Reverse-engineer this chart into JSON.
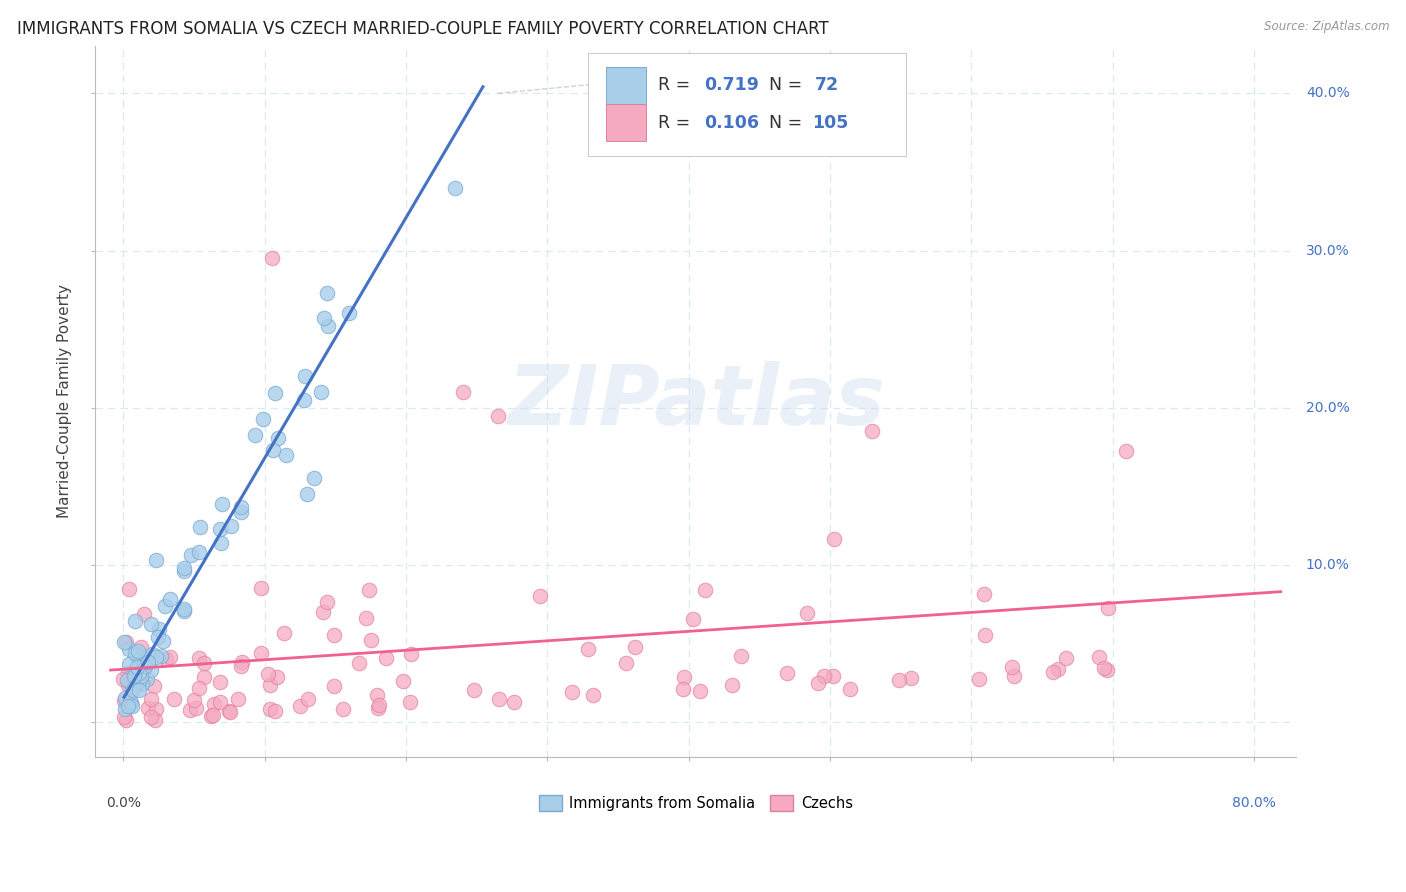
{
  "title": "IMMIGRANTS FROM SOMALIA VS CZECH MARRIED-COUPLE FAMILY POVERTY CORRELATION CHART",
  "source": "Source: ZipAtlas.com",
  "ylabel": "Married-Couple Family Poverty",
  "color_somalia": "#A8CEEA",
  "color_somalia_edge": "#7AAACF",
  "color_somalia_line": "#4472C4",
  "color_czech": "#F5AABF",
  "color_czech_edge": "#E080A0",
  "color_czech_line": "#F06090",
  "color_rn_value": "#4472C4",
  "color_grid": "#D8EAF5",
  "legend_R1": "0.719",
  "legend_N1": "72",
  "legend_R2": "0.106",
  "legend_N2": "105",
  "watermark_color": "#C8D8EC"
}
